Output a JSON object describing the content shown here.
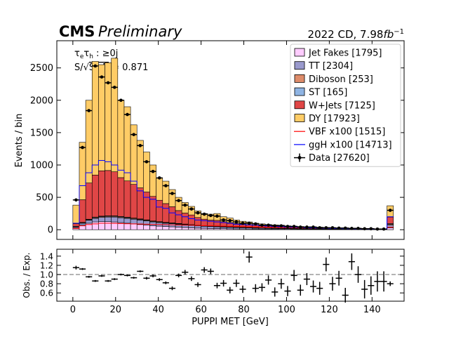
{
  "chart_data": [
    {
      "type": "stacked_histogram",
      "title": "CMS",
      "subtitle": "Preliminary",
      "lumi_label": [
        "2022 CD, 7.98",
        "fb",
        "−1"
      ],
      "channel_label": [
        "τ",
        "e",
        "τ",
        "h",
        " : ≥0j"
      ],
      "significance_label": [
        "S/√",
        "S+B",
        " = 0.871"
      ],
      "ylabel": "Events / bin",
      "bins": [
        0,
        3,
        6,
        9,
        12,
        15,
        18,
        21,
        24,
        27,
        30,
        33,
        36,
        39,
        42,
        45,
        48,
        51,
        54,
        57,
        60,
        63,
        66,
        69,
        72,
        75,
        78,
        81,
        84,
        87,
        90,
        93,
        96,
        99,
        102,
        105,
        108,
        111,
        114,
        117,
        120,
        123,
        126,
        129,
        132,
        135,
        138,
        141,
        144,
        147,
        150
      ],
      "series": [
        {
          "name": "Jet Fakes [1795]",
          "color": "#ffccff",
          "values": [
            30,
            70,
            100,
            120,
            125,
            125,
            120,
            110,
            100,
            90,
            80,
            70,
            60,
            55,
            50,
            45,
            40,
            35,
            30,
            25,
            22,
            20,
            18,
            16,
            14,
            12,
            11,
            10,
            9,
            8,
            7,
            7,
            6,
            6,
            5,
            5,
            5,
            4,
            4,
            4,
            3,
            3,
            3,
            3,
            3,
            2,
            2,
            2,
            2,
            30
          ]
        },
        {
          "name": "TT [2304]",
          "color": "#9999cc",
          "values": [
            15,
            30,
            45,
            55,
            65,
            70,
            75,
            75,
            75,
            72,
            70,
            65,
            60,
            55,
            50,
            47,
            44,
            40,
            37,
            34,
            31,
            29,
            27,
            25,
            23,
            21,
            19,
            17,
            15,
            14,
            13,
            12,
            11,
            10,
            9,
            8,
            8,
            7,
            7,
            6,
            6,
            5,
            5,
            5,
            4,
            4,
            4,
            3,
            3,
            40
          ]
        },
        {
          "name": "Diboson [253]",
          "color": "#de8c6a",
          "values": [
            5,
            8,
            10,
            12,
            12,
            12,
            12,
            12,
            11,
            11,
            10,
            10,
            9,
            9,
            8,
            8,
            7,
            7,
            6,
            6,
            6,
            5,
            5,
            5,
            5,
            4,
            4,
            4,
            4,
            3,
            3,
            3,
            3,
            3,
            3,
            2,
            2,
            2,
            2,
            2,
            2,
            2,
            2,
            2,
            2,
            2,
            1,
            1,
            1,
            15
          ]
        },
        {
          "name": "ST [165]",
          "color": "#8fb4e3",
          "values": [
            3,
            5,
            7,
            8,
            8,
            8,
            8,
            8,
            8,
            7,
            7,
            7,
            6,
            6,
            6,
            5,
            5,
            5,
            5,
            4,
            4,
            4,
            4,
            3,
            3,
            3,
            3,
            3,
            3,
            2,
            2,
            2,
            2,
            2,
            2,
            2,
            2,
            2,
            1,
            1,
            1,
            1,
            1,
            1,
            1,
            1,
            1,
            1,
            1,
            10
          ]
        },
        {
          "name": "W+Jets [7125]",
          "color": "#e04646",
          "values": [
            40,
            350,
            560,
            650,
            700,
            700,
            680,
            600,
            560,
            520,
            480,
            430,
            380,
            330,
            290,
            250,
            200,
            170,
            150,
            120,
            100,
            90,
            90,
            75,
            65,
            55,
            50,
            45,
            38,
            35,
            30,
            28,
            27,
            22,
            20,
            18,
            16,
            16,
            14,
            12,
            11,
            11,
            11,
            8,
            8,
            6,
            6,
            4,
            4,
            100
          ]
        },
        {
          "name": "DY [17923]",
          "color": "#ffcc66",
          "values": [
            287,
            887,
            1278,
            1755,
            1640,
            1665,
            1755,
            1195,
            1146,
            920,
            733,
            618,
            485,
            345,
            346,
            265,
            204,
            163,
            132,
            101,
            87,
            92,
            106,
            76,
            70,
            55,
            43,
            41,
            31,
            28,
            25,
            23,
            21,
            17,
            16,
            15,
            12,
            14,
            12,
            10,
            7,
            8,
            8,
            6,
            7,
            5,
            6,
            4,
            4,
            175
          ]
        }
      ],
      "lines": [
        {
          "name": "VBF x100 [1515]",
          "color": "#ff0000",
          "values": [
            20,
            60,
            80,
            90,
            100,
            100,
            98,
            95,
            92,
            90,
            88,
            85,
            82,
            80,
            78,
            75,
            72,
            70,
            68,
            65,
            62,
            60,
            58,
            55,
            52,
            50,
            48,
            46,
            44,
            42,
            40,
            38,
            36,
            34,
            32,
            30,
            28,
            26,
            24,
            22,
            20,
            19,
            18,
            17,
            16,
            15,
            14,
            13,
            12,
            40
          ]
        },
        {
          "name": "ggH x100 [14713]",
          "color": "#0000ff",
          "values": [
            100,
            680,
            880,
            1000,
            1070,
            1050,
            1000,
            920,
            880,
            750,
            600,
            500,
            470,
            350,
            330,
            260,
            230,
            200,
            170,
            150,
            140,
            130,
            120,
            110,
            100,
            85,
            80,
            75,
            70,
            60,
            55,
            50,
            45,
            40,
            38,
            35,
            30,
            28,
            25,
            22,
            20,
            18,
            16,
            15,
            14,
            12,
            10,
            8,
            8,
            200
          ]
        }
      ],
      "data": {
        "name": "Data [27620]",
        "color": "#000000",
        "values": [
          460,
          1270,
          1840,
          2530,
          2360,
          2270,
          2200,
          2000,
          1780,
          1470,
          1300,
          1050,
          900,
          800,
          680,
          560,
          450,
          380,
          320,
          260,
          240,
          220,
          210,
          150,
          140,
          120,
          100,
          100,
          90,
          70,
          70,
          60,
          60,
          50,
          50,
          40,
          40,
          40,
          30,
          30,
          30,
          25,
          25,
          20,
          20,
          15,
          15,
          10,
          10,
          300
        ]
      },
      "xlim": [
        -7.5,
        155
      ],
      "ylim": [
        -150,
        2920
      ],
      "yticks": [
        0,
        500,
        1000,
        1500,
        2000,
        2500
      ],
      "legend": "upper right"
    },
    {
      "type": "ratio",
      "ylabel": "Obs. / Exp.",
      "xlabel": "PUPPI MET [GeV]",
      "values": [
        1.15,
        1.12,
        0.95,
        0.86,
        0.97,
        0.86,
        0.9,
        1.0,
        0.98,
        0.93,
        1.07,
        0.92,
        0.97,
        0.89,
        0.82,
        0.7,
        0.98,
        1.05,
        0.91,
        0.78,
        1.1,
        1.07,
        0.76,
        0.81,
        0.66,
        0.81,
        0.68,
        1.38,
        0.7,
        0.72,
        0.88,
        0.62,
        0.8,
        0.64,
        0.98,
        0.66,
        0.9,
        0.74,
        0.7,
        1.22,
        0.8,
        0.92,
        0.55,
        1.28,
        1.0,
        0.68,
        0.76,
        0.85,
        0.85,
        0.8
      ],
      "yerr": [
        0.04,
        0.02,
        0.02,
        0.02,
        0.02,
        0.02,
        0.02,
        0.02,
        0.02,
        0.02,
        0.02,
        0.03,
        0.03,
        0.03,
        0.03,
        0.04,
        0.04,
        0.05,
        0.05,
        0.05,
        0.06,
        0.06,
        0.06,
        0.07,
        0.07,
        0.08,
        0.08,
        0.12,
        0.09,
        0.09,
        0.1,
        0.1,
        0.11,
        0.11,
        0.12,
        0.12,
        0.13,
        0.13,
        0.14,
        0.15,
        0.15,
        0.16,
        0.16,
        0.18,
        0.18,
        0.2,
        0.2,
        0.22,
        0.22,
        0.05
      ],
      "reference": 1,
      "xlim": [
        -7.5,
        155
      ],
      "ylim": [
        0.42,
        1.55
      ],
      "xticks": [
        0,
        20,
        40,
        60,
        80,
        100,
        120,
        140
      ],
      "yticks": [
        0.6,
        0.8,
        {
          "value": 1,
          "label": "1.0"
        },
        1.2,
        1.4
      ]
    }
  ]
}
